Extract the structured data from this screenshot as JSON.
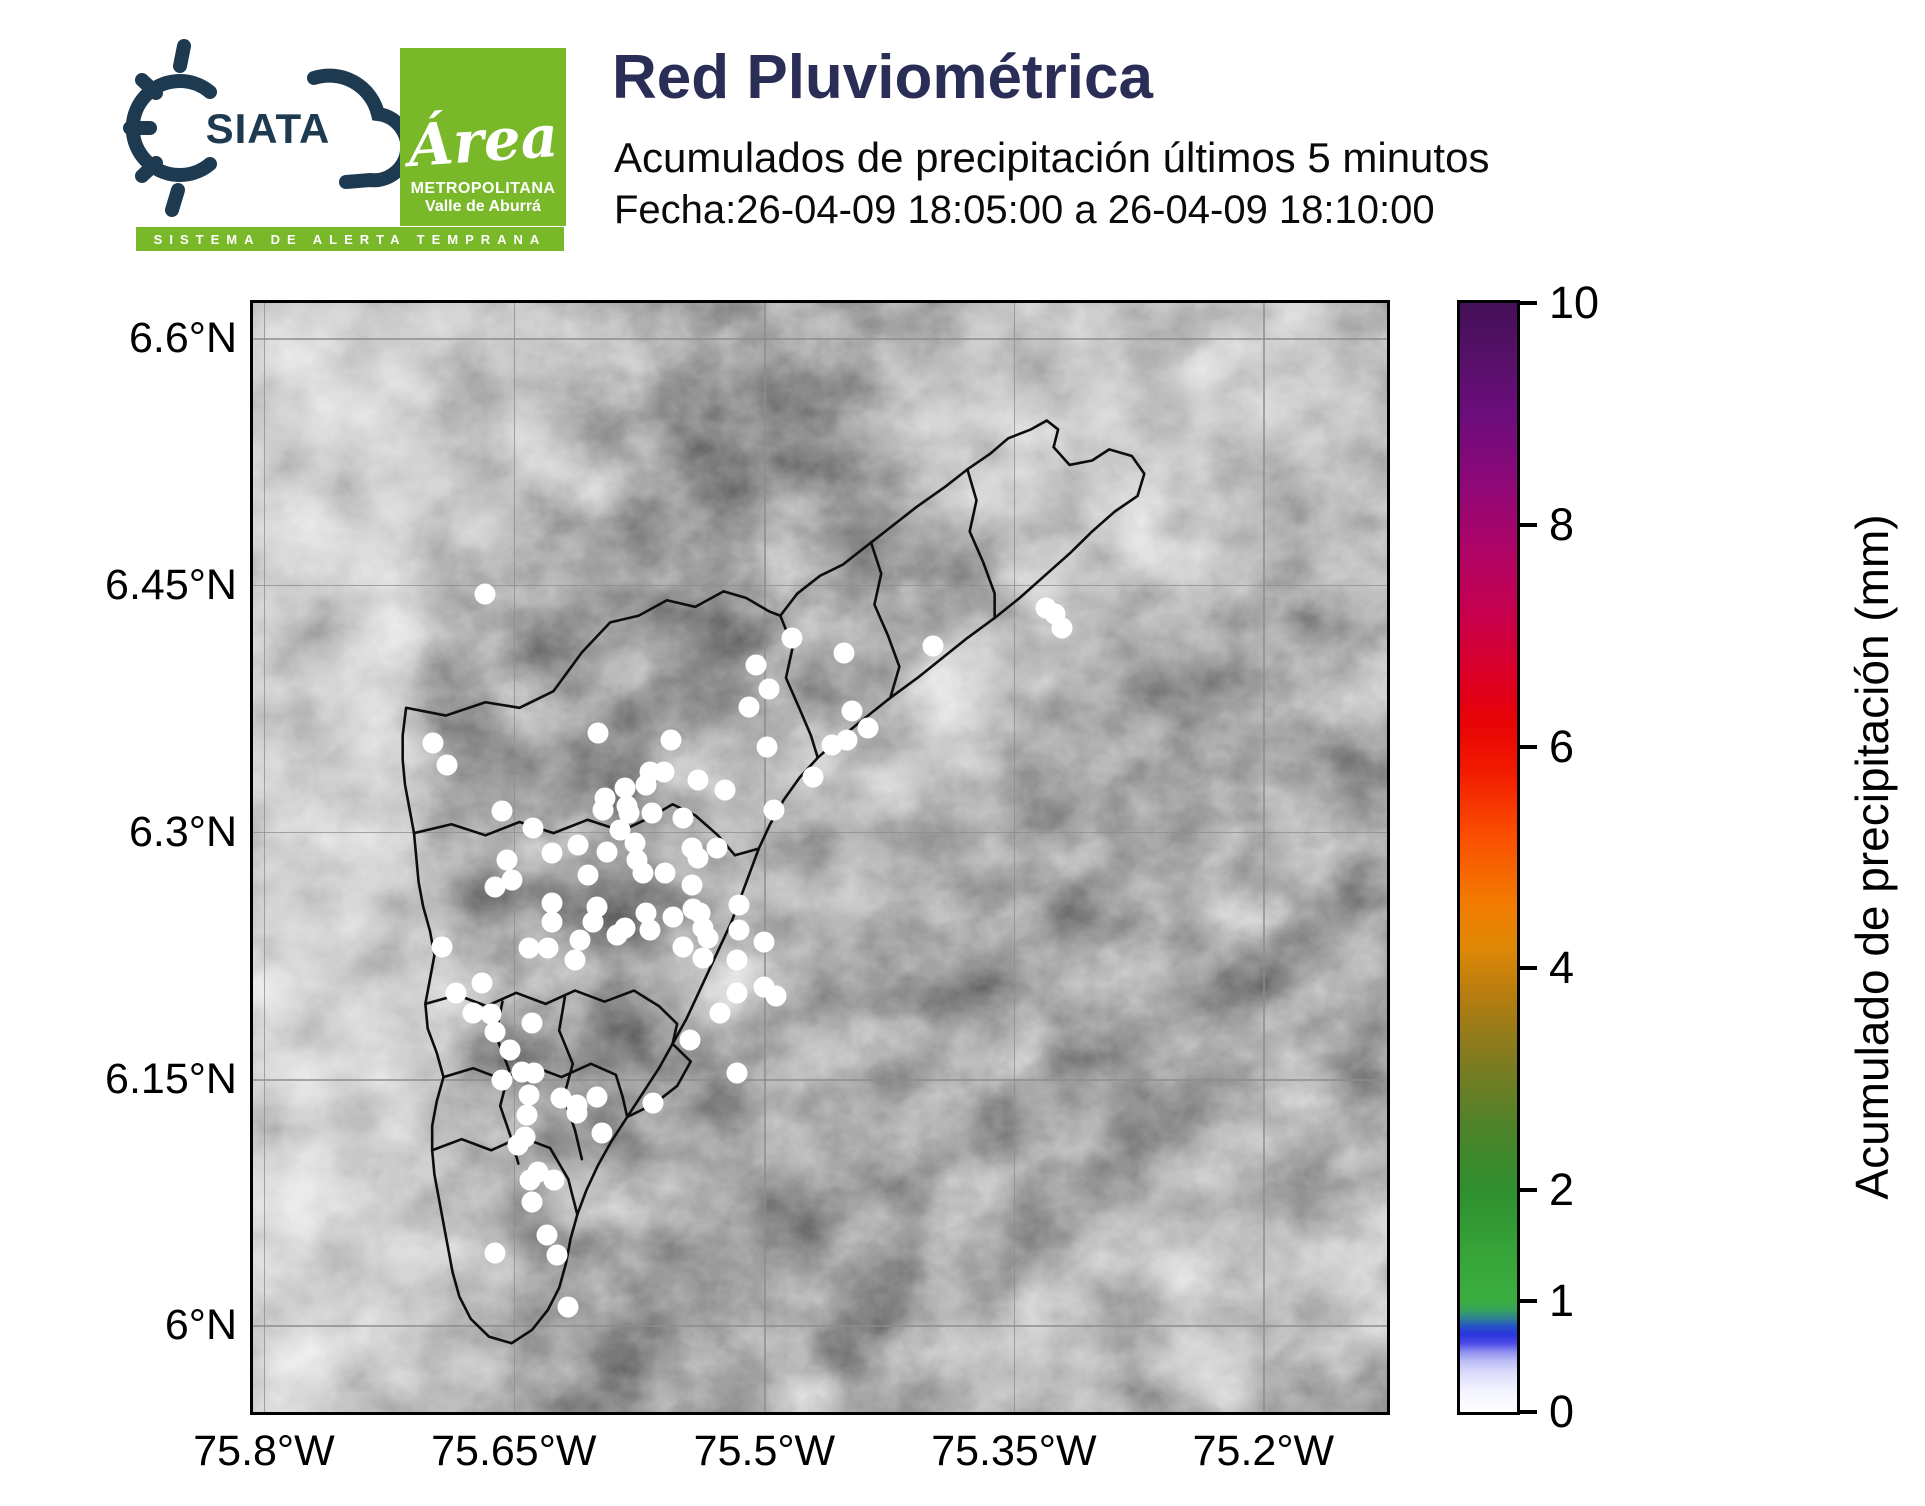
{
  "header": {
    "siata_text": "SIATA",
    "tagline": "SISTEMA DE ALERTA TEMPRANA",
    "amva_script": "Área",
    "amva_line1": "METROPOLITANA",
    "amva_line2": "Valle de Aburrá",
    "title": "Red Pluviométrica",
    "subtitle": "Acumulados de precipitación últimos 5 minutos",
    "date_line": "Fecha:26-04-09 18:05:00 a 26-04-09 18:10:00"
  },
  "colors": {
    "brand_navy": "#2a2d55",
    "logo_navy": "#1e3a50",
    "brand_green": "#79b829",
    "grid": "#8c8c8c",
    "boundary": "#0d0d0d",
    "station": "#ffffff"
  },
  "chart_data": {
    "type": "scatter",
    "title": "Red Pluviométrica",
    "subtitle": "Acumulados de precipitación últimos 5 minutos",
    "time_window": "26-04-09 18:05:00 a 26-04-09 18:10:00",
    "note": "rain-gauge stations, all showing 0 mm (white) over grayscale terrain map of the Aburrá Valley",
    "xlim": [
      "75.81°W",
      "75.12°W"
    ],
    "ylim": [
      "5.95°N",
      "6.62°N"
    ],
    "legend_position": "right colorbar",
    "grid": true
  },
  "map": {
    "x_ticks": [
      {
        "label": "75.8°W",
        "pct": 0.97
      },
      {
        "label": "75.65°W",
        "pct": 23.0
      },
      {
        "label": "75.5°W",
        "pct": 45.1
      },
      {
        "label": "75.35°W",
        "pct": 67.1
      },
      {
        "label": "75.2°W",
        "pct": 89.1
      }
    ],
    "y_ticks": [
      {
        "label": "6.6°N",
        "pct": 3.2
      },
      {
        "label": "6.45°N",
        "pct": 25.4
      },
      {
        "label": "6.3°N",
        "pct": 47.7
      },
      {
        "label": "6.15°N",
        "pct": 70.0
      },
      {
        "label": "6°N",
        "pct": 92.2
      }
    ],
    "stations": [
      [
        20.5,
        26.2
      ],
      [
        69.9,
        27.5
      ],
      [
        70.7,
        28.0
      ],
      [
        71.3,
        29.3
      ],
      [
        60.0,
        30.9
      ],
      [
        47.5,
        30.2
      ],
      [
        52.1,
        31.6
      ],
      [
        44.4,
        32.6
      ],
      [
        45.5,
        34.8
      ],
      [
        43.7,
        36.4
      ],
      [
        52.8,
        36.8
      ],
      [
        54.2,
        38.3
      ],
      [
        52.4,
        39.4
      ],
      [
        51.1,
        39.9
      ],
      [
        45.3,
        40.0
      ],
      [
        49.4,
        42.7
      ],
      [
        30.4,
        38.8
      ],
      [
        36.9,
        39.4
      ],
      [
        15.9,
        39.7
      ],
      [
        17.1,
        41.7
      ],
      [
        35.0,
        42.3
      ],
      [
        36.2,
        42.3
      ],
      [
        32.8,
        43.7
      ],
      [
        34.7,
        43.5
      ],
      [
        39.2,
        43.0
      ],
      [
        41.6,
        43.9
      ],
      [
        31.0,
        44.6
      ],
      [
        30.9,
        45.7
      ],
      [
        33.0,
        45.4
      ],
      [
        33.2,
        46.0
      ],
      [
        35.2,
        46.0
      ],
      [
        45.9,
        45.7
      ],
      [
        37.9,
        46.4
      ],
      [
        22.0,
        45.8
      ],
      [
        24.7,
        47.3
      ],
      [
        32.4,
        47.5
      ],
      [
        33.7,
        48.7
      ],
      [
        28.7,
        48.9
      ],
      [
        26.4,
        49.6
      ],
      [
        31.2,
        49.5
      ],
      [
        33.9,
        50.2
      ],
      [
        38.7,
        49.1
      ],
      [
        39.2,
        50.0
      ],
      [
        40.9,
        49.1
      ],
      [
        22.4,
        50.2
      ],
      [
        21.3,
        52.7
      ],
      [
        22.8,
        52.0
      ],
      [
        34.4,
        51.4
      ],
      [
        36.3,
        51.4
      ],
      [
        29.5,
        51.6
      ],
      [
        38.7,
        52.5
      ],
      [
        26.4,
        54.1
      ],
      [
        26.4,
        55.8
      ],
      [
        30.3,
        54.5
      ],
      [
        30.0,
        55.8
      ],
      [
        32.1,
        57.0
      ],
      [
        32.8,
        56.4
      ],
      [
        34.7,
        55.0
      ],
      [
        35.0,
        56.5
      ],
      [
        37.0,
        55.4
      ],
      [
        38.8,
        54.6
      ],
      [
        39.4,
        55.0
      ],
      [
        39.7,
        56.4
      ],
      [
        40.1,
        57.3
      ],
      [
        37.9,
        58.1
      ],
      [
        42.9,
        56.5
      ],
      [
        45.1,
        57.6
      ],
      [
        42.9,
        54.3
      ],
      [
        39.7,
        59.1
      ],
      [
        42.7,
        59.2
      ],
      [
        28.8,
        57.4
      ],
      [
        28.4,
        59.2
      ],
      [
        16.7,
        58.1
      ],
      [
        24.3,
        58.2
      ],
      [
        26.0,
        58.2
      ],
      [
        17.9,
        62.2
      ],
      [
        20.2,
        61.3
      ],
      [
        19.4,
        64.0
      ],
      [
        21.0,
        64.1
      ],
      [
        21.3,
        65.7
      ],
      [
        22.7,
        67.4
      ],
      [
        24.6,
        64.9
      ],
      [
        24.8,
        69.4
      ],
      [
        22.0,
        70.1
      ],
      [
        23.7,
        69.3
      ],
      [
        41.2,
        64.0
      ],
      [
        38.5,
        66.5
      ],
      [
        42.7,
        69.4
      ],
      [
        42.7,
        62.2
      ],
      [
        45.1,
        61.7
      ],
      [
        46.1,
        62.5
      ],
      [
        24.3,
        71.4
      ],
      [
        27.2,
        71.7
      ],
      [
        28.6,
        72.3
      ],
      [
        30.3,
        71.6
      ],
      [
        24.2,
        73.2
      ],
      [
        28.6,
        73.0
      ],
      [
        35.3,
        72.1
      ],
      [
        24.0,
        75.2
      ],
      [
        23.4,
        75.9
      ],
      [
        30.8,
        74.8
      ],
      [
        25.1,
        78.4
      ],
      [
        24.4,
        79.1
      ],
      [
        26.5,
        79.1
      ],
      [
        24.6,
        81.1
      ],
      [
        25.9,
        84.0
      ],
      [
        21.3,
        85.7
      ],
      [
        26.8,
        85.8
      ],
      [
        27.8,
        90.5
      ]
    ],
    "boundary_paths": [
      "M 13.5,36.5 L 17,37.2 20.5,36 23.5,36.5 26.5,35 29,31.5 31.5,28.8 34,28.2 36.5,26.8 39,27.4 41.5,26 43.5,26.6 45.5,27.8 46.5,28.2 48,26.2 50,24.6 52,23.6 54.5,21.6 56.5,20 58.5,18.4 61,16.6 63,15 65,13.6 66.6,12.2 68.6,11.4 70,10.6 71,11.4 70.6,13 72,14.6 74,14.2 75.5,13.2 77.5,13.8 78.6,15.4 78,17.4 76,18.8 74,20.6 72,22.6 69.8,24.6 67.6,26.6 65.4,28.4 63,30.2 60.8,32 58.6,33.8 56.2,35.6 54,37.4 51.8,39.2 49.8,41 48.2,42.8 46.8,44.8 45.6,47 44.6,49.2 43.8,51.4 43,53.6 42.2,55.8 41.2,58 40.2,60.2 39.2,62.4 38.2,64.6 37,66.8 35.8,69 34.4,71.2 33,73.4 31.6,75.6 30.4,77.8 29.4,80 28.6,82.2 28,84.4 27.6,86.6 27,88.8 26,90.8 24.6,92.6 22.8,93.8 20.8,93.2 19.2,91.6 18.2,89.6 17.6,87.4 17.2,85.2 16.8,83 16.4,80.8 16,78.6 15.8,76.4 15.8,74.2 16.2,72 16.8,69.8 16.2,67.6 15.4,65.4 15.2,63.2 15.6,61 16,58.8 15.6,56.6 15,54.4 14.6,52.2 14.4,50 14.2,47.8 13.8,45.6 13.4,43.4 13.2,41.2 13.2,39 Z",
      "M 14.2,47.8 L 17.5,47 20.5,48 23.5,46.8 26.5,47.8 29.5,46.6 32.5,47.6 35,46.4 37,45.2 39,46.2 41,48 42.5,49.8 44.6,49.2",
      "M 46.5,28.2 L 47.6,31 47,33.8 48.2,36.6 49.2,39 49.8,41",
      "M 54.5,21.6 L 55.4,24.4 54.8,27.2 56,30 57,32.8 56.2,35.6",
      "M 63,15 L 63.8,17.8 63.2,20.6 64.4,23.4 65.4,26.2 65.4,28.4",
      "M 15.2,63.2 L 18,62.4 20.6,63.4 23.2,62.2 25.8,63.2 28.4,62 31,63 33.6,62 35.8,63.4 37.4,65 37,66.8",
      "M 16.8,69.8 L 19.4,69 22,70 24.6,68.8 27.2,69.8 29.8,68.6 32,69.6 32.6,71.6 33,73.4",
      "M 22,63 L 21.4,66 22.6,69.2 21.8,72.4 22.8,75.4 23.4,77.6",
      "M 27.5,62.6 L 27,65.6 28.2,68.6 27.4,71.6 28.4,74.6 29,77.2",
      "M 15.8,76.4 L 18.4,75.4 21,76.4 23.6,75.2 26.2,76.2 27.8,79 28.6,82.2",
      "M 33,73.4 L 35.4,72.2 37.4,70.6 38.6,68.4 37,66.8"
    ]
  },
  "colorbar": {
    "label": "Acumulado de precipitación (mm)",
    "min": 0,
    "max": 10,
    "ticks": [
      {
        "value": 10,
        "label": "10"
      },
      {
        "value": 8,
        "label": "8"
      },
      {
        "value": 6,
        "label": "6"
      },
      {
        "value": 4,
        "label": "4"
      },
      {
        "value": 2,
        "label": "2"
      },
      {
        "value": 1,
        "label": "1"
      },
      {
        "value": 0,
        "label": "0"
      }
    ],
    "stops": [
      {
        "p": 0,
        "c": "#ffffff"
      },
      {
        "p": 2,
        "c": "#f2f2ff"
      },
      {
        "p": 3.5,
        "c": "#dcdcfb"
      },
      {
        "p": 4.6,
        "c": "#bcbcf7"
      },
      {
        "p": 5.4,
        "c": "#9090f0"
      },
      {
        "p": 6.2,
        "c": "#4a4ae6"
      },
      {
        "p": 7,
        "c": "#2b35dd"
      },
      {
        "p": 7.8,
        "c": "#2657c4"
      },
      {
        "p": 8.4,
        "c": "#2e7f96"
      },
      {
        "p": 9.2,
        "c": "#37a35e"
      },
      {
        "p": 10,
        "c": "#3bad41"
      },
      {
        "p": 14,
        "c": "#37a53a"
      },
      {
        "p": 20,
        "c": "#2e8f2e"
      },
      {
        "p": 26,
        "c": "#50822a"
      },
      {
        "p": 32,
        "c": "#827b20"
      },
      {
        "p": 38,
        "c": "#ba7d0f"
      },
      {
        "p": 42,
        "c": "#e08806"
      },
      {
        "p": 46,
        "c": "#f37a00"
      },
      {
        "p": 52,
        "c": "#fa4e00"
      },
      {
        "p": 58,
        "c": "#f21900"
      },
      {
        "p": 62,
        "c": "#e80404"
      },
      {
        "p": 66,
        "c": "#de0023"
      },
      {
        "p": 72,
        "c": "#c7004e"
      },
      {
        "p": 78,
        "c": "#ad0468"
      },
      {
        "p": 84,
        "c": "#8d0878"
      },
      {
        "p": 90,
        "c": "#6c0d7c"
      },
      {
        "p": 95,
        "c": "#571069"
      },
      {
        "p": 100,
        "c": "#441058"
      }
    ]
  }
}
